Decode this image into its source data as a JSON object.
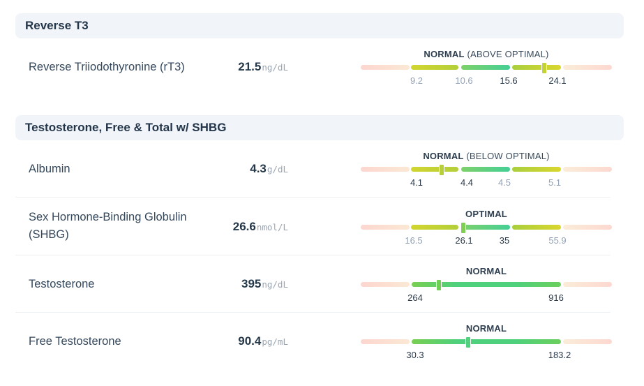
{
  "sections": [
    {
      "title": "Reverse T3",
      "tests": [
        {
          "name": "Reverse Triiodothyronine (rT3)",
          "value": "21.5",
          "unit": "ng/dL",
          "status_label": "NORMAL",
          "status_detail": "(ABOVE OPTIMAL)",
          "marker_value": 21.5,
          "bands": [
            {
              "color": "#fcd9d2",
              "from": 0,
              "to": 9.2
            },
            {
              "color": "#fbe9d3",
              "from": 0,
              "to": 9.2
            },
            {
              "color": "#c4cf32",
              "from": 9.2,
              "to": 10.6
            },
            {
              "color": "#55cf87",
              "from": 10.6,
              "to": 15.6
            },
            {
              "color": "#b8cf39",
              "from": 15.6,
              "to": 24.1
            },
            {
              "color": "#fbe9d3",
              "from": 24.1,
              "to": 30
            }
          ],
          "ticks": [
            {
              "label": "9.2",
              "style": "dim"
            },
            {
              "label": "10.6",
              "style": "dim"
            },
            {
              "label": "15.6",
              "style": "dark"
            },
            {
              "label": "24.1",
              "style": "dark"
            }
          ]
        }
      ]
    },
    {
      "title": "Testosterone, Free & Total w/ SHBG",
      "tests": [
        {
          "name": "Albumin",
          "value": "4.3",
          "unit": "g/dL",
          "status_label": "NORMAL",
          "status_detail": "(BELOW OPTIMAL)",
          "marker_value": 4.3,
          "ticks": [
            {
              "label": "4.1",
              "style": "dark"
            },
            {
              "label": "4.4",
              "style": "dark"
            },
            {
              "label": "4.5",
              "style": "dim"
            },
            {
              "label": "5.1",
              "style": "dim"
            }
          ]
        },
        {
          "name_lines": [
            "Sex Hormone-Binding Globulin",
            "(SHBG)"
          ],
          "value": "26.6",
          "unit": "nmol/L",
          "status_label": "OPTIMAL",
          "status_detail": "",
          "marker_value": 26.6,
          "ticks": [
            {
              "label": "16.5",
              "style": "dim"
            },
            {
              "label": "26.1",
              "style": "dark"
            },
            {
              "label": "35",
              "style": "dark"
            },
            {
              "label": "55.9",
              "style": "dim"
            }
          ]
        },
        {
          "name": "Testosterone",
          "value": "395",
          "unit": "ng/dL",
          "status_label": "NORMAL",
          "status_detail": "",
          "marker_value": 395,
          "ticks": [
            {
              "label": "264",
              "style": "dark"
            },
            {
              "label": "916",
              "style": "dark"
            }
          ]
        },
        {
          "name": "Free Testosterone",
          "value": "90.4",
          "unit": "pg/mL",
          "status_label": "NORMAL",
          "status_detail": "",
          "marker_value": 90.4,
          "ticks": [
            {
              "label": "30.3",
              "style": "dark"
            },
            {
              "label": "183.2",
              "style": "dark"
            }
          ]
        }
      ]
    }
  ],
  "colors": {
    "red_zone": "#fcd9d2",
    "amber_zone": "#fbeedc",
    "yellow_green": "#c9d434",
    "green": "#4fd08c",
    "marker_green": "#7fcf4a"
  }
}
